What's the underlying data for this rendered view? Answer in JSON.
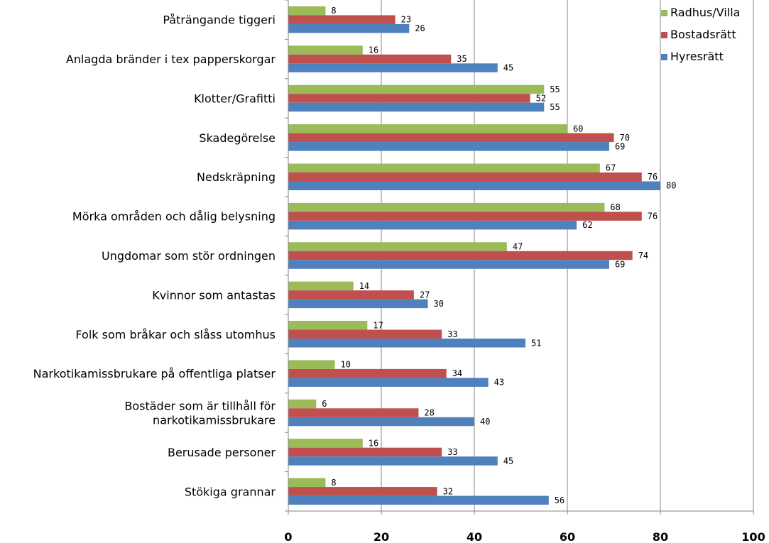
{
  "chart_data": {
    "type": "bar",
    "orientation": "horizontal",
    "categories": [
      "Påträngande tiggeri",
      "Anlagda bränder i tex papperskorgar",
      "Klotter/Grafitti",
      "Skadegörelse",
      "Nedskräpning",
      "Mörka områden och dålig belysning",
      "Ungdomar som stör ordningen",
      "Kvinnor som antastas",
      "Folk som bråkar och slåss utomhus",
      "Narkotikamissbrukare på offentliga platser",
      "Bostäder som är tillhåll för narkotikamissbrukare",
      "Berusade personer",
      "Stökiga grannar"
    ],
    "category_lines": [
      [
        "Påträngande tiggeri"
      ],
      [
        "Anlagda bränder i tex papperskorgar"
      ],
      [
        "Klotter/Grafitti"
      ],
      [
        "Skadegörelse"
      ],
      [
        "Nedskräpning"
      ],
      [
        "Mörka områden och dålig belysning"
      ],
      [
        "Ungdomar som stör ordningen"
      ],
      [
        "Kvinnor som antastas"
      ],
      [
        "Folk som bråkar och slåss utomhus"
      ],
      [
        "Narkotikamissbrukare på offentliga platser"
      ],
      [
        "Bostäder som är tillhåll för",
        "narkotikamissbrukare"
      ],
      [
        "Berusade personer"
      ],
      [
        "Stökiga grannar"
      ]
    ],
    "series": [
      {
        "name": "Radhus/Villa",
        "color": "#9bbb59",
        "values": [
          8,
          16,
          55,
          60,
          67,
          68,
          47,
          14,
          17,
          10,
          6,
          16,
          8
        ]
      },
      {
        "name": "Bostadsrätt",
        "color": "#c0504d",
        "values": [
          23,
          35,
          52,
          70,
          76,
          76,
          74,
          27,
          33,
          34,
          28,
          33,
          32
        ]
      },
      {
        "name": "Hyresrätt",
        "color": "#4f81bd",
        "values": [
          26,
          45,
          55,
          69,
          80,
          62,
          69,
          30,
          51,
          43,
          40,
          45,
          56
        ]
      }
    ],
    "xlim": [
      0,
      100
    ],
    "xticks": [
      0,
      20,
      40,
      60,
      80,
      100
    ],
    "grid": true,
    "legend_position": "top-right",
    "title": "",
    "xlabel": "",
    "ylabel": ""
  }
}
